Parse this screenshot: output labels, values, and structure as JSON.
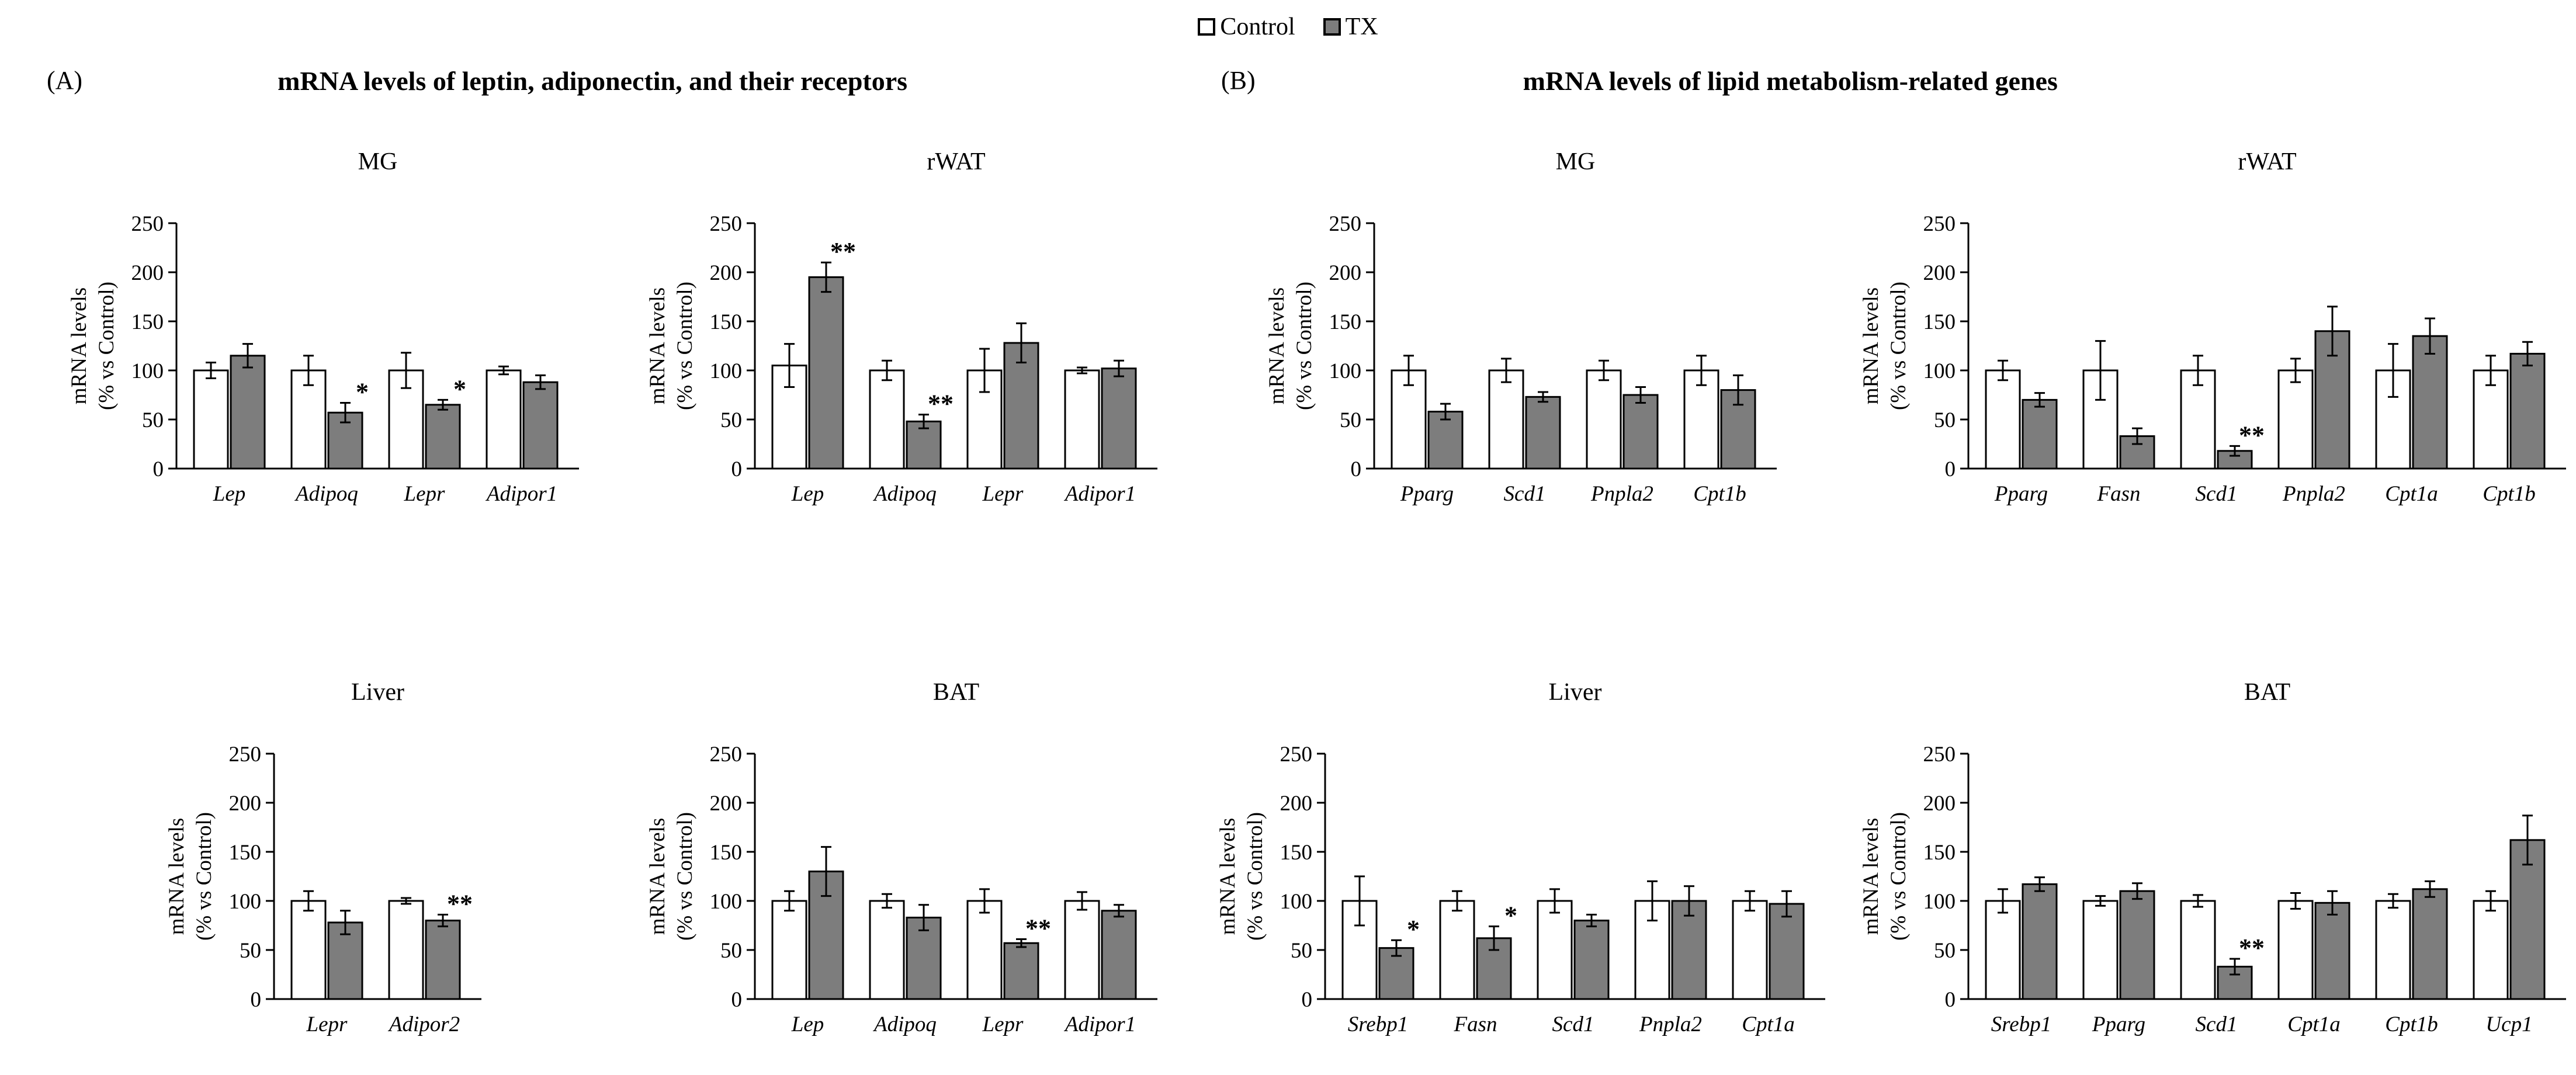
{
  "legend": {
    "items": [
      {
        "label": "Control",
        "fill": "#ffffff",
        "border": "#000000"
      },
      {
        "label": "TX",
        "fill": "#7d7d7d",
        "border": "#000000"
      }
    ]
  },
  "panel_a": {
    "label": "(A)",
    "title": "mRNA levels of leptin, adiponectin, and their receptors"
  },
  "panel_b": {
    "label": "(B)",
    "title": "mRNA levels of lipid metabolism-related genes"
  },
  "axis": {
    "ylabel_line1": "mRNA levels",
    "ylabel_line2": "(% vs Control)",
    "ylim": [
      0,
      250
    ],
    "yticks": [
      0,
      50,
      100,
      150,
      200,
      250
    ]
  },
  "chart_data": [
    {
      "type": "bar",
      "panel": "A",
      "title": "MG",
      "categories": [
        "Lep",
        "Adipoq",
        "Lepr",
        "Adipor1"
      ],
      "series": [
        {
          "name": "Control",
          "values": [
            100,
            100,
            100,
            100
          ],
          "errors": [
            8,
            15,
            18,
            4
          ]
        },
        {
          "name": "TX",
          "values": [
            115,
            57,
            65,
            88
          ],
          "errors": [
            12,
            10,
            5,
            7
          ]
        }
      ],
      "significance": [
        "",
        "*",
        "*",
        ""
      ],
      "ylabel": "mRNA levels (% vs Control)",
      "ylim": [
        0,
        250
      ]
    },
    {
      "type": "bar",
      "panel": "A",
      "title": "rWAT",
      "categories": [
        "Lep",
        "Adipoq",
        "Lepr",
        "Adipor1"
      ],
      "series": [
        {
          "name": "Control",
          "values": [
            105,
            100,
            100,
            100
          ],
          "errors": [
            22,
            10,
            22,
            3
          ]
        },
        {
          "name": "TX",
          "values": [
            195,
            48,
            128,
            102
          ],
          "errors": [
            15,
            7,
            20,
            8
          ]
        }
      ],
      "significance": [
        "**",
        "**",
        "",
        ""
      ],
      "ylabel": "mRNA levels (% vs Control)",
      "ylim": [
        0,
        250
      ]
    },
    {
      "type": "bar",
      "panel": "B",
      "title": "MG",
      "categories": [
        "Pparg",
        "Scd1",
        "Pnpla2",
        "Cpt1b"
      ],
      "series": [
        {
          "name": "Control",
          "values": [
            100,
            100,
            100,
            100
          ],
          "errors": [
            15,
            12,
            10,
            15
          ]
        },
        {
          "name": "TX",
          "values": [
            58,
            73,
            75,
            80
          ],
          "errors": [
            8,
            5,
            8,
            15
          ]
        }
      ],
      "significance": [
        "",
        "",
        "",
        ""
      ],
      "ylabel": "mRNA levels (% vs Control)",
      "ylim": [
        0,
        250
      ]
    },
    {
      "type": "bar",
      "panel": "B",
      "title": "rWAT",
      "categories": [
        "Pparg",
        "Fasn",
        "Scd1",
        "Pnpla2",
        "Cpt1a",
        "Cpt1b"
      ],
      "series": [
        {
          "name": "Control",
          "values": [
            100,
            100,
            100,
            100,
            100,
            100
          ],
          "errors": [
            10,
            30,
            15,
            12,
            27,
            15
          ]
        },
        {
          "name": "TX",
          "values": [
            70,
            33,
            18,
            140,
            135,
            117
          ],
          "errors": [
            7,
            8,
            5,
            25,
            18,
            12
          ]
        }
      ],
      "significance": [
        "",
        "",
        "**",
        "",
        "",
        ""
      ],
      "ylabel": "mRNA levels (% vs Control)",
      "ylim": [
        0,
        250
      ]
    },
    {
      "type": "bar",
      "panel": "A",
      "title": "Liver",
      "categories": [
        "Lepr",
        "Adipor2"
      ],
      "series": [
        {
          "name": "Control",
          "values": [
            100,
            100
          ],
          "errors": [
            10,
            3
          ]
        },
        {
          "name": "TX",
          "values": [
            78,
            80
          ],
          "errors": [
            12,
            6
          ]
        }
      ],
      "significance": [
        "",
        "**"
      ],
      "ylabel": "mRNA levels (% vs Control)",
      "ylim": [
        0,
        250
      ]
    },
    {
      "type": "bar",
      "panel": "A",
      "title": "BAT",
      "categories": [
        "Lep",
        "Adipoq",
        "Lepr",
        "Adipor1"
      ],
      "series": [
        {
          "name": "Control",
          "values": [
            100,
            100,
            100,
            100
          ],
          "errors": [
            10,
            7,
            12,
            9
          ]
        },
        {
          "name": "TX",
          "values": [
            130,
            83,
            57,
            90
          ],
          "errors": [
            25,
            13,
            4,
            6
          ]
        }
      ],
      "significance": [
        "",
        "",
        "**",
        ""
      ],
      "ylabel": "mRNA levels (% vs Control)",
      "ylim": [
        0,
        250
      ]
    },
    {
      "type": "bar",
      "panel": "B",
      "title": "Liver",
      "categories": [
        "Srebp1",
        "Fasn",
        "Scd1",
        "Pnpla2",
        "Cpt1a"
      ],
      "series": [
        {
          "name": "Control",
          "values": [
            100,
            100,
            100,
            100,
            100
          ],
          "errors": [
            25,
            10,
            12,
            20,
            10
          ]
        },
        {
          "name": "TX",
          "values": [
            52,
            62,
            80,
            100,
            97
          ],
          "errors": [
            8,
            12,
            6,
            15,
            13
          ]
        }
      ],
      "significance": [
        "*",
        "*",
        "",
        "",
        ""
      ],
      "ylabel": "mRNA levels (% vs Control)",
      "ylim": [
        0,
        250
      ]
    },
    {
      "type": "bar",
      "panel": "B",
      "title": "BAT",
      "categories": [
        "Srebp1",
        "Pparg",
        "Scd1",
        "Cpt1a",
        "Cpt1b",
        "Ucp1"
      ],
      "series": [
        {
          "name": "Control",
          "values": [
            100,
            100,
            100,
            100,
            100,
            100
          ],
          "errors": [
            12,
            5,
            6,
            8,
            7,
            10
          ]
        },
        {
          "name": "TX",
          "values": [
            117,
            110,
            33,
            98,
            112,
            162
          ],
          "errors": [
            7,
            8,
            8,
            12,
            8,
            25
          ]
        }
      ],
      "significance": [
        "",
        "",
        "**",
        "",
        "",
        ""
      ],
      "ylabel": "mRNA levels (% vs Control)",
      "ylim": [
        0,
        250
      ]
    }
  ]
}
